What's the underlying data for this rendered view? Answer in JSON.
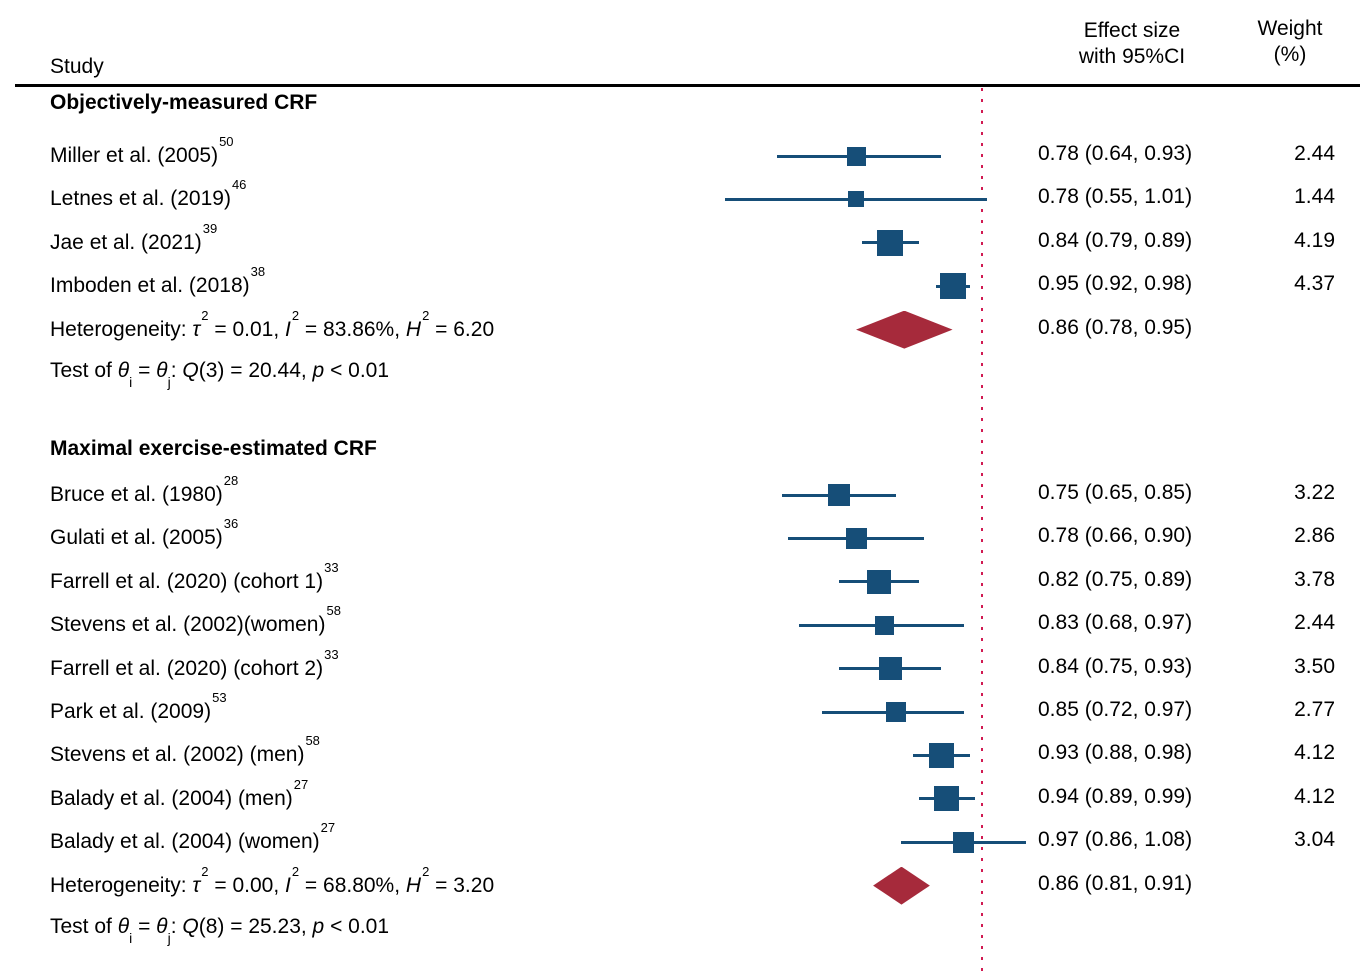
{
  "header": {
    "study": "Study",
    "effect_line1": "Effect size",
    "effect_line2": "with 95%CI",
    "weight_line1": "Weight",
    "weight_line2": "(%)"
  },
  "labels": {
    "heterogeneity_prefix": "Heterogeneity:",
    "tau_symbol": "τ",
    "i_symbol": "I",
    "h_symbol": "H",
    "test_prefix": "Test of",
    "theta_symbol": "θ",
    "q_symbol": "Q",
    "p_symbol": "p"
  },
  "colors": {
    "marker_blue": "#164E78",
    "diamond_red": "#A62A3B",
    "ref_line_red": "#D11A52",
    "text": "#000000",
    "rule": "#000000"
  },
  "chart_data": {
    "type": "forest",
    "ref_value": 1.0,
    "x_note": "effect size scale, reference dotted line at 1.0",
    "sections": [
      {
        "title": "Objectively-measured CRF",
        "studies": [
          {
            "label": "Miller et al. (2005)",
            "ref_num": "50",
            "est": 0.78,
            "lo": 0.64,
            "hi": 0.93,
            "effect_text": "0.78 (0.64, 0.93)",
            "weight": "2.44"
          },
          {
            "label": "Letnes et al. (2019)",
            "ref_num": "46",
            "est": 0.78,
            "lo": 0.55,
            "hi": 1.01,
            "effect_text": "0.78 (0.55, 1.01)",
            "weight": "1.44"
          },
          {
            "label": "Jae et al. (2021)",
            "ref_num": "39",
            "est": 0.84,
            "lo": 0.79,
            "hi": 0.89,
            "effect_text": "0.84 (0.79, 0.89)",
            "weight": "4.19"
          },
          {
            "label": "Imboden et al. (2018)",
            "ref_num": "38",
            "est": 0.95,
            "lo": 0.92,
            "hi": 0.98,
            "effect_text": "0.95 (0.92, 0.98)",
            "weight": "4.37"
          }
        ],
        "pooled": {
          "est": 0.86,
          "lo": 0.78,
          "hi": 0.95,
          "effect_text": "0.86 (0.78, 0.95)"
        },
        "heterogeneity": {
          "tau2": "0.01",
          "I2": "83.86%",
          "H2": "6.20"
        },
        "test": {
          "df": "3",
          "Q": "20.44",
          "p": "< 0.01"
        }
      },
      {
        "title": "Maximal exercise-estimated CRF",
        "studies": [
          {
            "label": "Bruce et al. (1980)",
            "ref_num": "28",
            "est": 0.75,
            "lo": 0.65,
            "hi": 0.85,
            "effect_text": "0.75 (0.65, 0.85)",
            "weight": "3.22"
          },
          {
            "label": "Gulati et al. (2005)",
            "ref_num": "36",
            "est": 0.78,
            "lo": 0.66,
            "hi": 0.9,
            "effect_text": "0.78 (0.66, 0.90)",
            "weight": "2.86"
          },
          {
            "label": "Farrell et al. (2020) (cohort 1)",
            "ref_num": "33",
            "est": 0.82,
            "lo": 0.75,
            "hi": 0.89,
            "effect_text": "0.82 (0.75, 0.89)",
            "weight": "3.78"
          },
          {
            "label": "Stevens et al. (2002)(women)",
            "ref_num": "58",
            "est": 0.83,
            "lo": 0.68,
            "hi": 0.97,
            "effect_text": "0.83 (0.68, 0.97)",
            "weight": "2.44"
          },
          {
            "label": "Farrell et al. (2020)  (cohort 2)",
            "ref_num": "33",
            "est": 0.84,
            "lo": 0.75,
            "hi": 0.93,
            "effect_text": "0.84 (0.75, 0.93)",
            "weight": "3.50"
          },
          {
            "label": "Park et al. (2009)",
            "ref_num": "53",
            "est": 0.85,
            "lo": 0.72,
            "hi": 0.97,
            "effect_text": "0.85 (0.72, 0.97)",
            "weight": "2.77"
          },
          {
            "label": "Stevens et al. (2002) (men)",
            "ref_num": "58",
            "est": 0.93,
            "lo": 0.88,
            "hi": 0.98,
            "effect_text": "0.93 (0.88, 0.98)",
            "weight": "4.12"
          },
          {
            "label": "Balady et al. (2004) (men)",
            "ref_num": "27",
            "est": 0.94,
            "lo": 0.89,
            "hi": 0.99,
            "effect_text": "0.94 (0.89, 0.99)",
            "weight": "4.12"
          },
          {
            "label": "Balady et al. (2004) (women)",
            "ref_num": "27",
            "est": 0.97,
            "lo": 0.86,
            "hi": 1.08,
            "effect_text": "0.97 (0.86, 1.08)",
            "weight": "3.04"
          }
        ],
        "pooled": {
          "est": 0.86,
          "lo": 0.81,
          "hi": 0.91,
          "effect_text": "0.86 (0.81, 0.91)"
        },
        "heterogeneity": {
          "tau2": "0.00",
          "I2": "68.80%",
          "H2": "3.20"
        },
        "test": {
          "df": "8",
          "Q": "25.23",
          "p": "< 0.01"
        }
      }
    ]
  }
}
